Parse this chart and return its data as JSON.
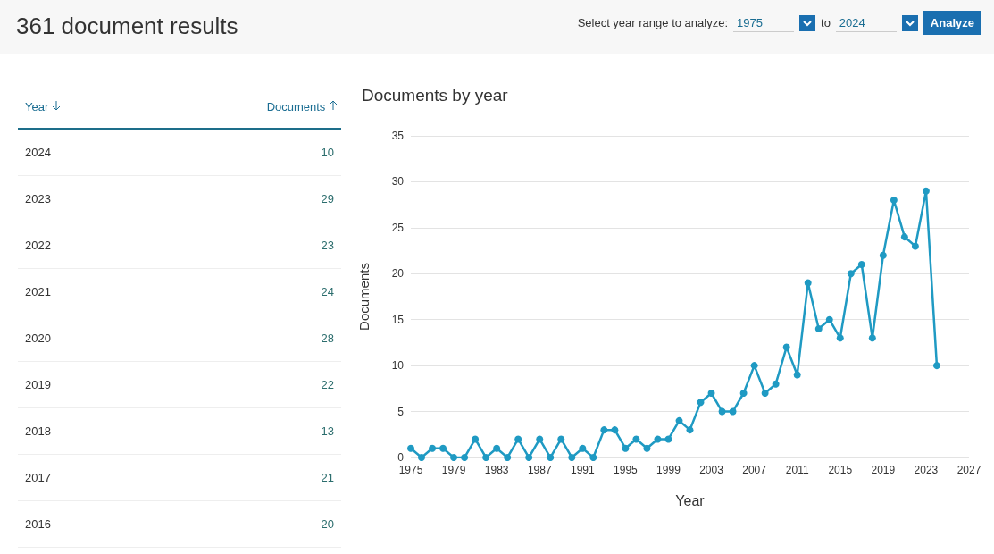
{
  "chart_data": {
    "type": "line",
    "title": "Documents by year",
    "xlabel": "Year",
    "ylabel": "Documents",
    "annotations": [
      "361 document results",
      "Select year range to analyze:",
      "1975",
      "to",
      "2024",
      "Analyze",
      "Year",
      "Documents",
      "2024",
      "10",
      "2023",
      "29",
      "2022",
      "23",
      "2021",
      "24",
      "2020",
      "28",
      "2019",
      "22",
      "2018",
      "13",
      "2017",
      "21",
      "2016",
      "20"
    ],
    "x": [
      1975,
      1976,
      1977,
      1978,
      1979,
      1980,
      1981,
      1982,
      1983,
      1984,
      1985,
      1986,
      1987,
      1988,
      1989,
      1990,
      1991,
      1992,
      1993,
      1994,
      1995,
      1996,
      1997,
      1998,
      1999,
      2000,
      2001,
      2002,
      2003,
      2004,
      2005,
      2006,
      2007,
      2008,
      2009,
      2010,
      2011,
      2012,
      2013,
      2014,
      2015,
      2016,
      2017,
      2018,
      2019,
      2020,
      2021,
      2022,
      2023,
      2024
    ],
    "values": [
      1,
      0,
      1,
      1,
      0,
      0,
      2,
      0,
      1,
      0,
      2,
      0,
      2,
      0,
      2,
      0,
      1,
      0,
      3,
      3,
      1,
      2,
      1,
      2,
      2,
      4,
      3,
      6,
      7,
      5,
      5,
      7,
      10,
      7,
      8,
      12,
      9,
      19,
      14,
      15,
      13,
      20,
      21,
      13,
      22,
      28,
      24,
      23,
      29,
      10
    ],
    "color": "#1f9ac3",
    "xlim": [
      1975,
      2027
    ],
    "xticks": [
      1975,
      1979,
      1983,
      1987,
      1991,
      1995,
      1999,
      2003,
      2007,
      2011,
      2015,
      2019,
      2023,
      2027
    ],
    "ylim": [
      0,
      35
    ],
    "yticks": [
      0,
      5,
      10,
      15,
      20,
      25,
      30,
      35
    ],
    "grid": "y",
    "marker": "circle",
    "line_style": "solid"
  }
}
